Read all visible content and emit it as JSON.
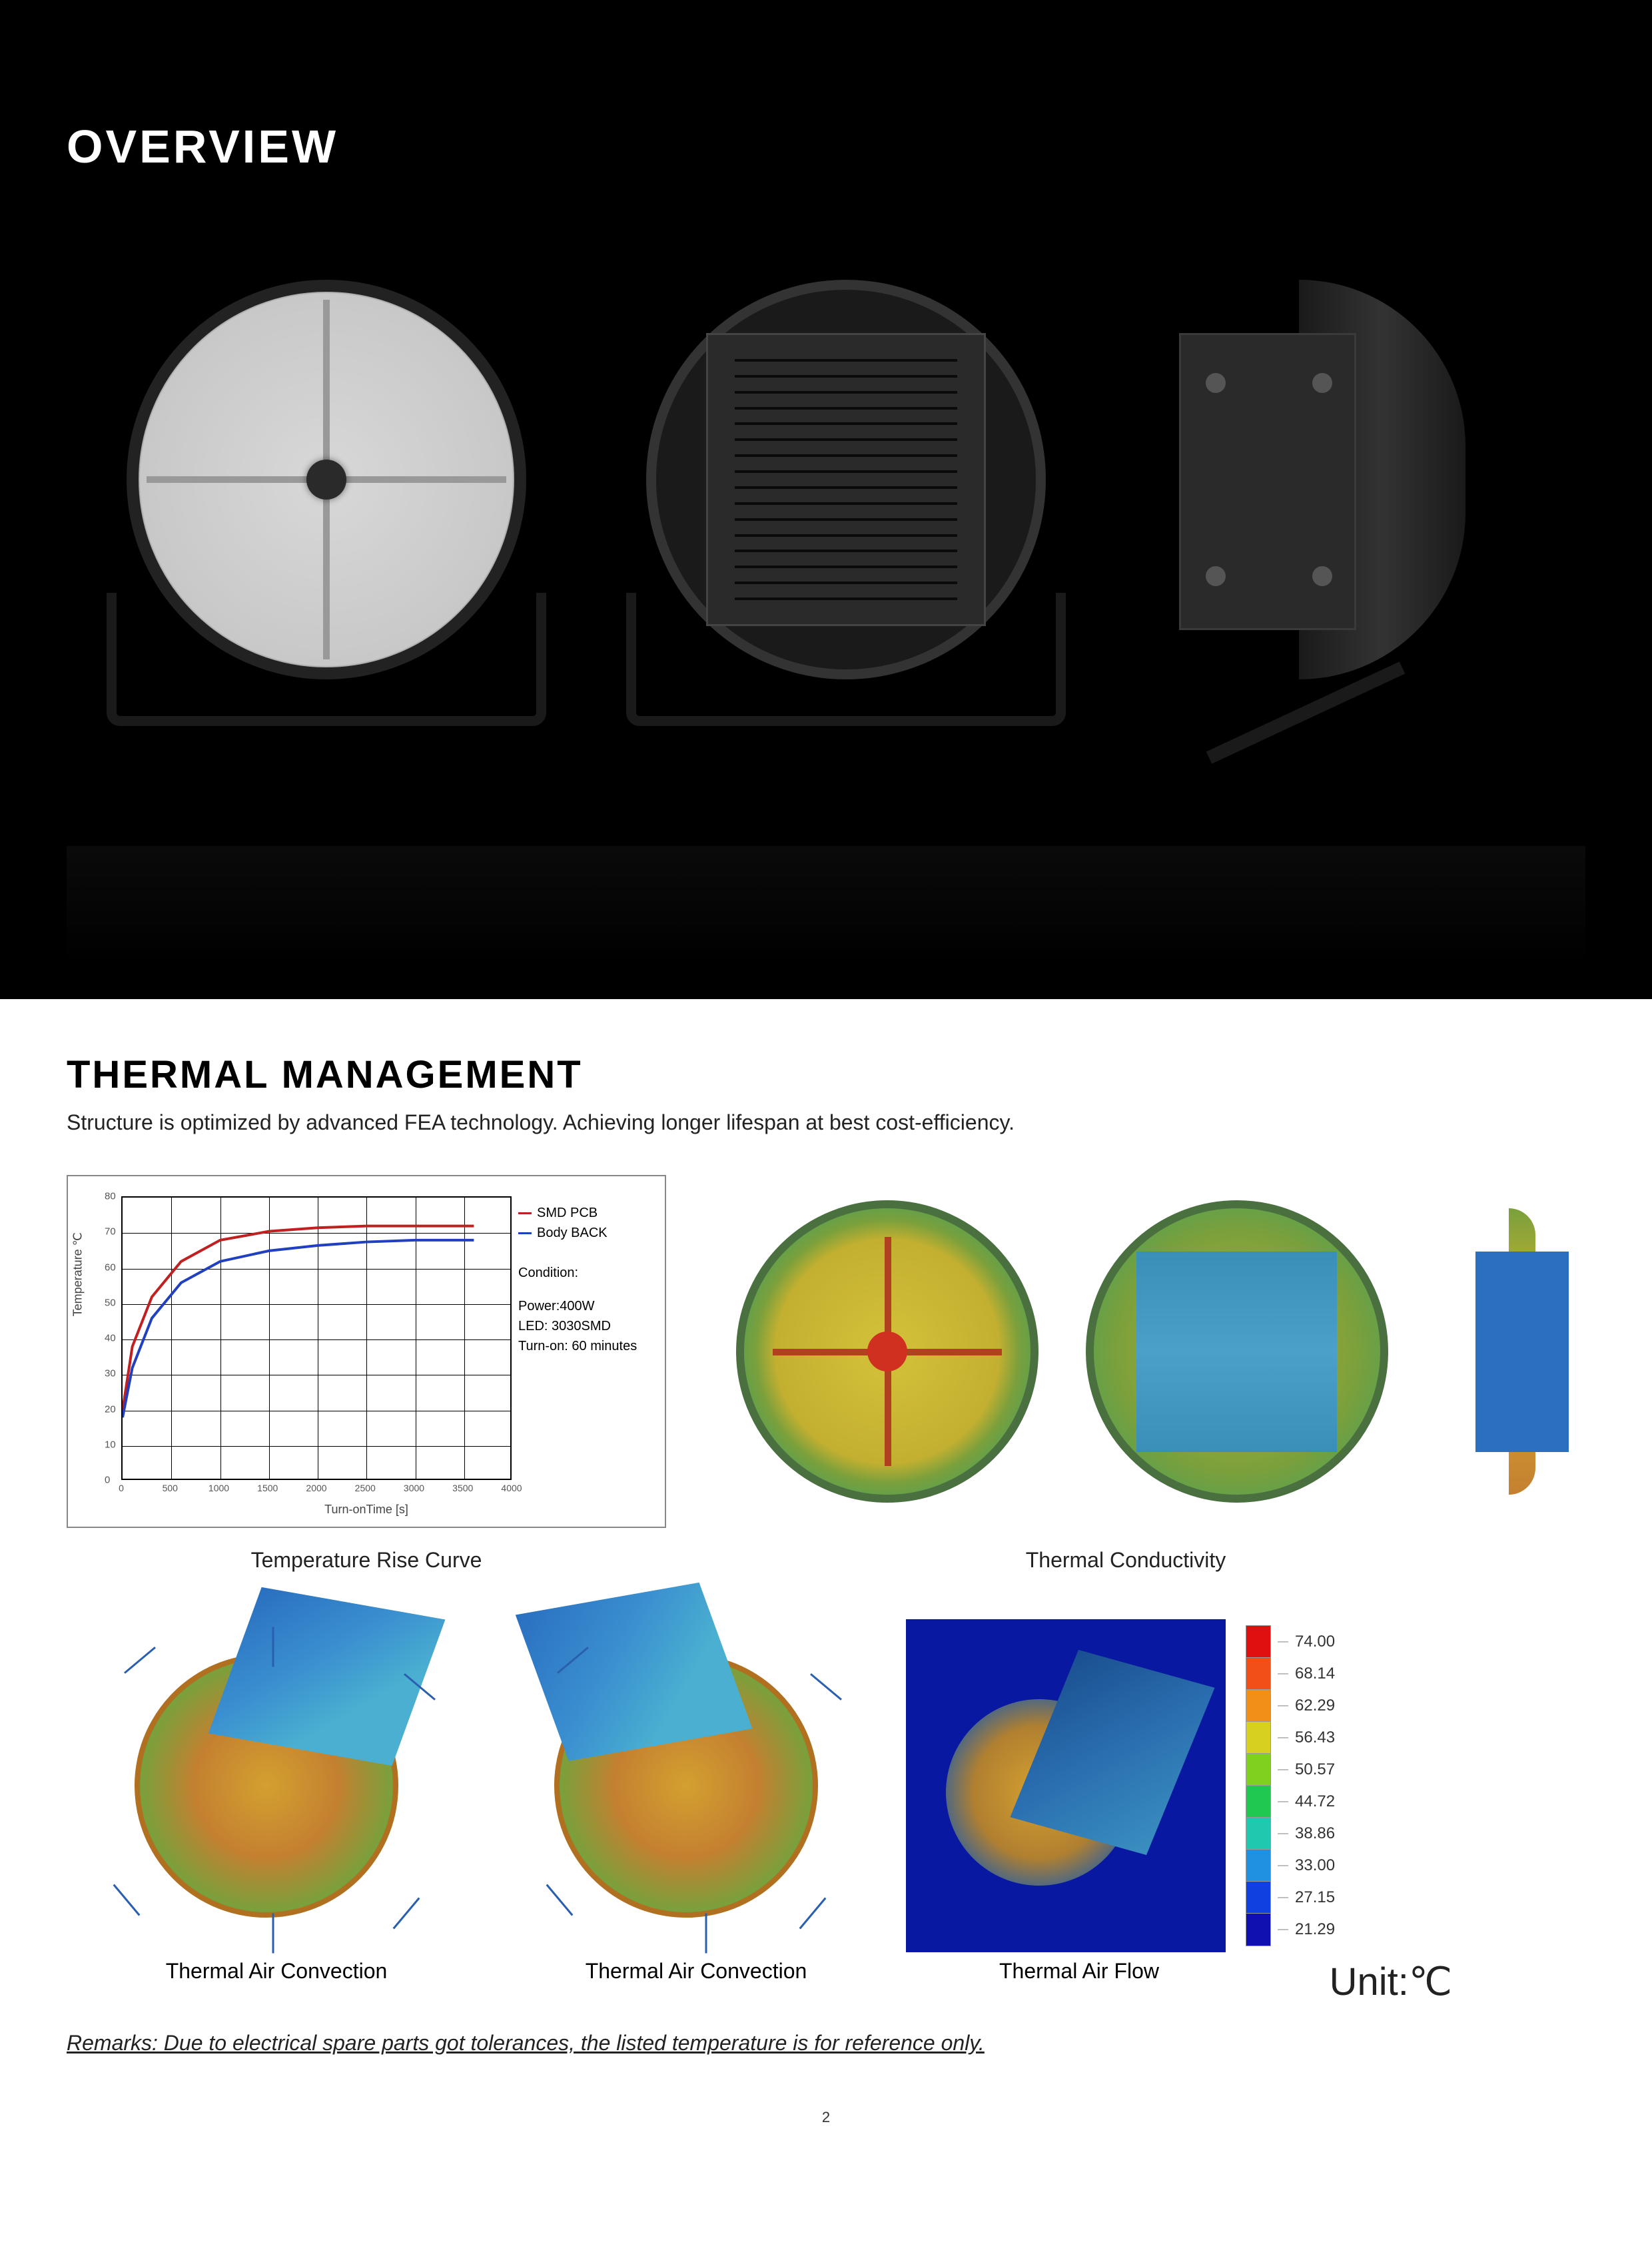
{
  "overview": {
    "title": "OVERVIEW"
  },
  "thermal": {
    "title": "THERMAL  MANAGEMENT",
    "subtitle": "Structure is optimized by advanced FEA  technology.  Achieving longer lifespan at best cost-efficiency.",
    "chart": {
      "type": "line",
      "legend": [
        {
          "label": "SMD PCB",
          "color": "#c02020"
        },
        {
          "label": "Body BACK",
          "color": "#2040c0"
        }
      ],
      "condition_label": "Condition:",
      "conditions": [
        "Power:400W",
        "LED: 3030SMD",
        "Turn-on: 60 minutes"
      ],
      "xlabel": "Turn-onTime [s]",
      "ylabel": "Temperature ℃",
      "xlim": [
        0,
        4000
      ],
      "ylim": [
        0,
        80
      ],
      "xticks": [
        0,
        500,
        1000,
        1500,
        2000,
        2500,
        3000,
        3500,
        4000
      ],
      "yticks": [
        0,
        10,
        20,
        30,
        40,
        50,
        60,
        70,
        80
      ],
      "series": {
        "smd_pcb": {
          "color": "#c02020",
          "points": [
            [
              0,
              20
            ],
            [
              100,
              38
            ],
            [
              300,
              52
            ],
            [
              600,
              62
            ],
            [
              1000,
              68
            ],
            [
              1500,
              70.5
            ],
            [
              2000,
              71.5
            ],
            [
              2500,
              72
            ],
            [
              3000,
              72
            ],
            [
              3500,
              72
            ],
            [
              3600,
              72
            ]
          ]
        },
        "body_back": {
          "color": "#2040c0",
          "points": [
            [
              0,
              18
            ],
            [
              100,
              32
            ],
            [
              300,
              46
            ],
            [
              600,
              56
            ],
            [
              1000,
              62
            ],
            [
              1500,
              65
            ],
            [
              2000,
              66.5
            ],
            [
              2500,
              67.5
            ],
            [
              3000,
              68
            ],
            [
              3500,
              68
            ],
            [
              3600,
              68
            ]
          ]
        }
      },
      "grid_color": "#000000",
      "background_color": "#ffffff"
    },
    "captions": {
      "temp_rise": "Temperature Rise Curve",
      "conductivity": "Thermal Conductivity",
      "convection1": "Thermal Air Convection",
      "convection2": "Thermal Air Convection",
      "airflow": "Thermal Air Flow"
    },
    "scale": {
      "items": [
        {
          "value": "74.00",
          "color": "#e01010"
        },
        {
          "value": "68.14",
          "color": "#f05018"
        },
        {
          "value": "62.29",
          "color": "#f09018"
        },
        {
          "value": "56.43",
          "color": "#d8d020"
        },
        {
          "value": "50.57",
          "color": "#80d020"
        },
        {
          "value": "44.72",
          "color": "#20c850"
        },
        {
          "value": "38.86",
          "color": "#20c8b0"
        },
        {
          "value": "33.00",
          "color": "#2090e0"
        },
        {
          "value": "27.15",
          "color": "#1040e0"
        },
        {
          "value": "21.29",
          "color": "#1010b0"
        }
      ],
      "unit": "Unit:℃"
    },
    "remarks": "Remarks: Due to electrical spare parts got tolerances, the listed temperature is for reference only."
  },
  "page_number": "2"
}
